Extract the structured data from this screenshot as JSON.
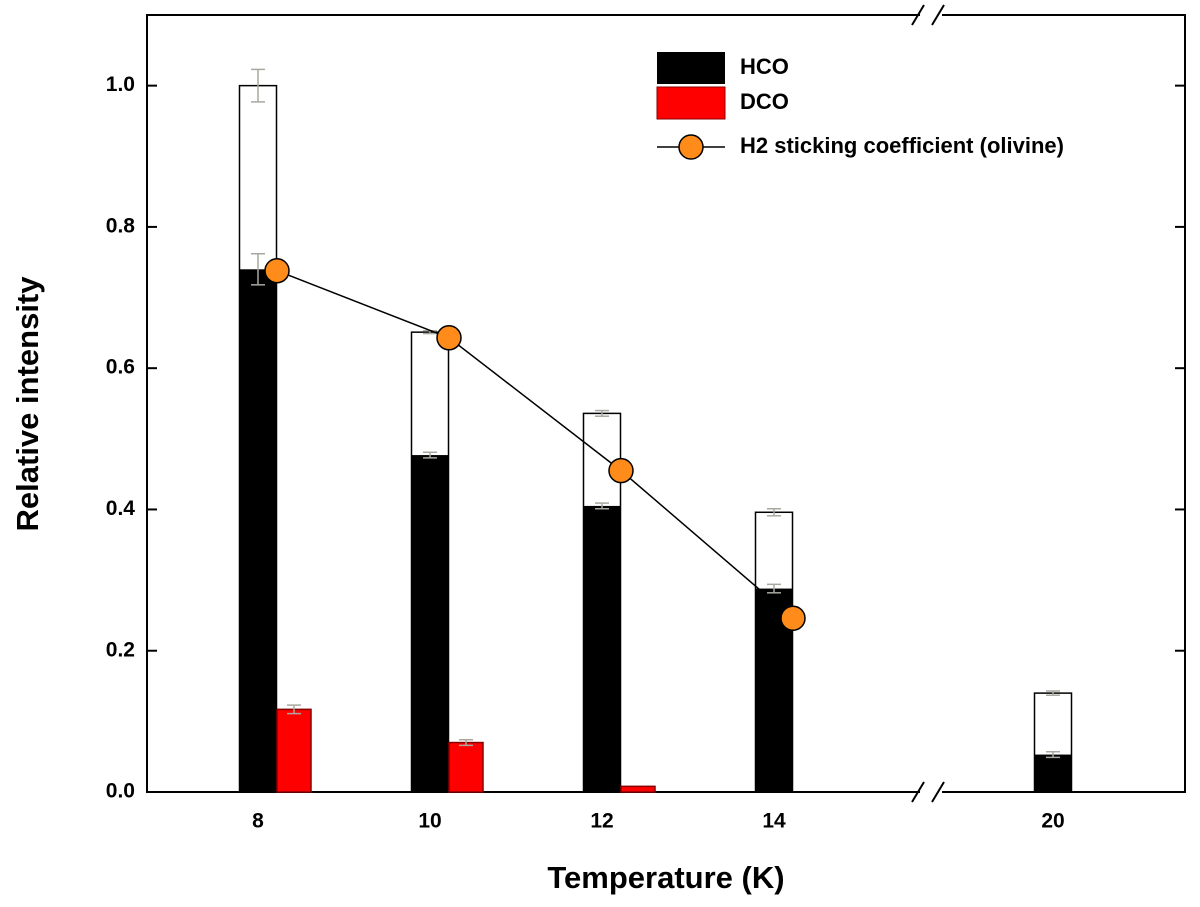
{
  "chart_data": {
    "type": "bar",
    "x_label": "Temperature (K)",
    "y_label": "Relative intensity",
    "categories": [
      "8",
      "10",
      "12",
      "14",
      "20"
    ],
    "ylim": [
      0,
      1.1
    ],
    "yticks": [
      {
        "value": 0,
        "label": "0.0"
      },
      {
        "value": 0.2,
        "label": "0.2"
      },
      {
        "value": 0.4,
        "label": "0.4"
      },
      {
        "value": 0.6,
        "label": "0.6"
      },
      {
        "value": 0.8,
        "label": "0.8"
      },
      {
        "value": 1.0,
        "label": "1.0"
      }
    ],
    "series": [
      {
        "color": "#ffffff",
        "values": [
          1.0,
          0.651,
          0.536,
          0.396,
          0.14
        ],
        "errors": [
          0.023,
          0.002,
          0.004,
          0.005,
          0.003
        ]
      },
      {
        "name": "HCO",
        "color": "#000000",
        "values": [
          0.74,
          0.477,
          0.405,
          0.288,
          0.053
        ],
        "errors": [
          0.022,
          0.004,
          0.004,
          0.006,
          0.004
        ]
      },
      {
        "name": "DCO",
        "color": "#ff0000",
        "values": [
          0.117,
          0.07,
          0.008,
          null,
          null
        ],
        "errors": [
          0.006,
          0.004,
          null,
          null,
          null
        ]
      },
      {
        "name": "H2 sticking coefficient (olivine)",
        "type": "line",
        "color": "#ff8c1a",
        "values": [
          0.738,
          0.643,
          0.455,
          0.246,
          null
        ]
      }
    ]
  }
}
